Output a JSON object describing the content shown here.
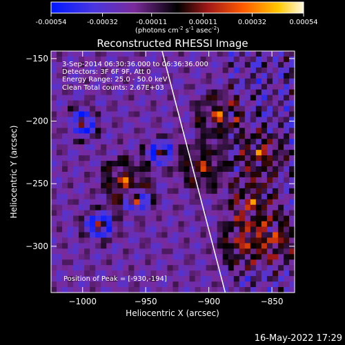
{
  "colorbar": {
    "tick_labels": [
      "-0.00054",
      "-0.00032",
      "-0.00011",
      "0.00011",
      "0.00032",
      "0.00054"
    ],
    "tick_values": [
      -0.00054,
      -0.00032,
      -0.00011,
      0.00011,
      0.00032,
      0.00054
    ],
    "range": [
      -0.00054,
      0.00054
    ],
    "unit_parts": [
      "(photons cm",
      "-2",
      " s",
      "-1",
      " asec",
      "-2",
      ")"
    ],
    "colors": [
      "#0018ff",
      "#5a2ed0",
      "#7a2a9a",
      "#000000",
      "#a01818",
      "#ff5a00",
      "#ffc800",
      "#fff8e0"
    ]
  },
  "chart_data": {
    "type": "heatmap",
    "title": "Reconstructed RHESSI Image",
    "xlabel": "Heliocentric X (arcsec)",
    "ylabel": "Heliocentric Y (arcsec)",
    "xlim": [
      -1025,
      -832
    ],
    "ylim": [
      -337,
      -144
    ],
    "xticks": [
      -1000,
      -950,
      -900,
      -850
    ],
    "xtick_labels": [
      "−1000",
      "−950",
      "−900",
      "−850"
    ],
    "yticks": [
      -150,
      -200,
      -250,
      -300
    ],
    "ytick_labels": [
      "−150",
      "−200",
      "−250",
      "−300"
    ],
    "grid": false,
    "annotations": [
      "3-Sep-2014 06:30:36.000 to 06:36:36.000",
      "Detectors: 3F 6F 9F, Att 0",
      "Energy Range: 25.0 - 50.0 keV",
      "Clean    Total counts: 2.67E+03"
    ],
    "peak_label": "Position of Peak = [-930,-194]",
    "peak": [
      -930,
      -194
    ],
    "limb_line": [
      [
        -937,
        -144
      ],
      [
        -887,
        -337
      ]
    ],
    "limb_color": "#ffffff"
  },
  "footer": {
    "timestamp": "16-May-2022 17:29"
  }
}
